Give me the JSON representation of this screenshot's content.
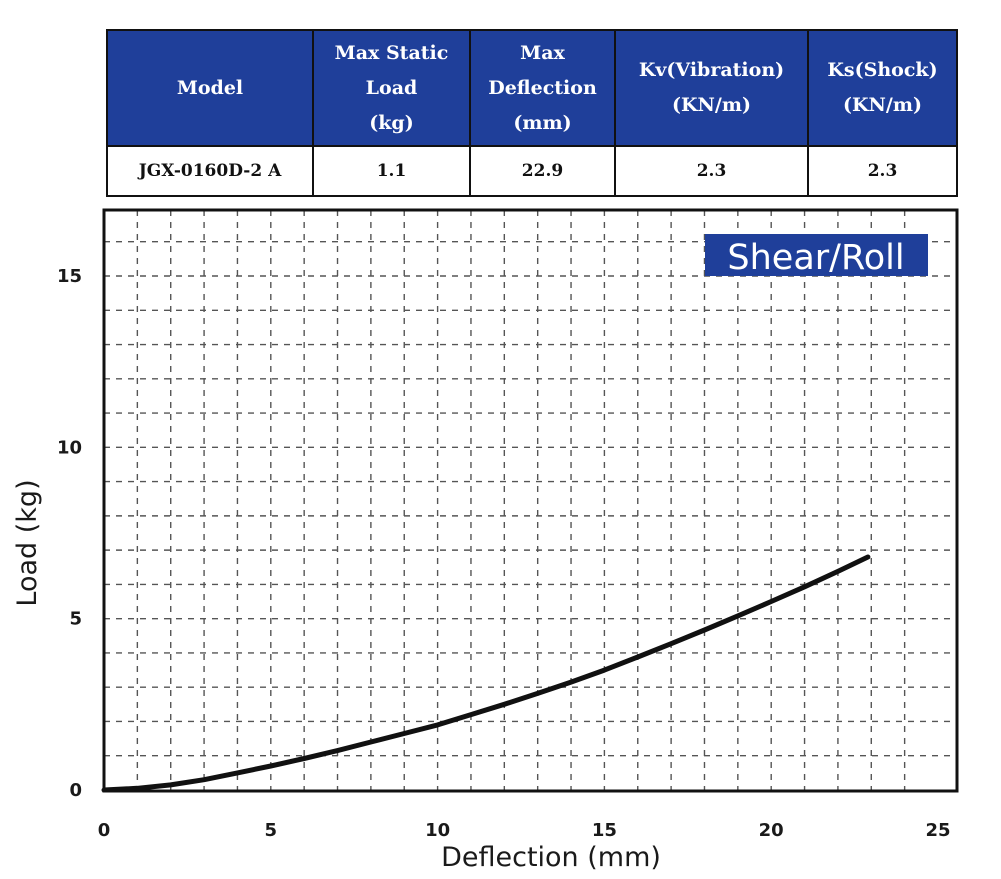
{
  "spec_table": {
    "headers": [
      [
        "Model"
      ],
      [
        "Max Static",
        "Load",
        "(kg)"
      ],
      [
        "Max",
        "Deflection",
        "(mm)"
      ],
      [
        "Kv(Vibration)",
        "(KN/m)"
      ],
      [
        "Ks(Shock)",
        "(KN/m)"
      ]
    ],
    "row": {
      "model": "JGX-0160D-2 A",
      "max_static_load": "1.1",
      "max_deflection": "22.9",
      "kv": "2.3",
      "ks": "2.3"
    }
  },
  "chart_data": {
    "type": "line",
    "title": "Shear/Roll",
    "xlabel": "Deflection (mm)",
    "ylabel": "Load (kg)",
    "xlim": [
      0,
      25
    ],
    "ylim": [
      0,
      16.5
    ],
    "x_ticks": [
      0,
      5,
      10,
      15,
      20,
      25
    ],
    "y_ticks": [
      0,
      5,
      10,
      15
    ],
    "grid": true,
    "series": [
      {
        "x": [
          0,
          1,
          2,
          3,
          4,
          5,
          6,
          7,
          8,
          9,
          10,
          11,
          12,
          13,
          14,
          15,
          16,
          17,
          18,
          19,
          20,
          21,
          22,
          22.9
        ],
        "y": [
          0,
          0.05,
          0.15,
          0.3,
          0.5,
          0.7,
          0.92,
          1.15,
          1.4,
          1.65,
          1.9,
          2.2,
          2.5,
          2.82,
          3.15,
          3.5,
          3.88,
          4.27,
          4.67,
          5.08,
          5.5,
          5.93,
          6.38,
          6.8
        ]
      }
    ],
    "colors": {
      "line": "#111111",
      "grid": "#555555",
      "badge": "#1f3f9a"
    }
  }
}
